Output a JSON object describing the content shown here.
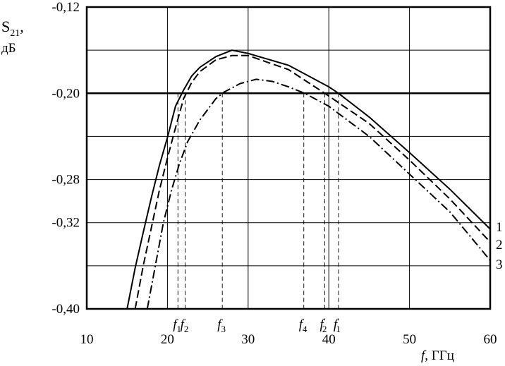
{
  "chart_data": {
    "type": "line",
    "ylabel": {
      "main": "S",
      "sub": "21",
      "rest": ",",
      "unit": "дБ"
    },
    "xlabel": {
      "italic": "f",
      "rest": ", ГГц"
    },
    "xlim": [
      10,
      60
    ],
    "xticks": [
      10,
      20,
      30,
      40,
      50,
      60
    ],
    "ylim": [
      -0.4,
      -0.12
    ],
    "yticks": [
      {
        "value": -0.12,
        "label": "-0,12"
      },
      {
        "value": -0.2,
        "label": "-0,20"
      },
      {
        "value": -0.28,
        "label": "-0,28"
      },
      {
        "value": -0.32,
        "label": "-0,32"
      },
      {
        "value": -0.4,
        "label": "-0,40"
      }
    ],
    "ygrid": [
      -0.16,
      -0.24,
      -0.36
    ],
    "highlight_y": -0.2,
    "grid": true,
    "series": [
      {
        "name": "1",
        "color": "#000000",
        "style": "solid",
        "x": [
          15,
          16,
          17,
          18,
          19,
          20,
          21,
          22,
          23,
          24,
          26,
          28,
          30,
          35,
          40,
          41.2,
          45,
          50,
          55,
          60
        ],
        "values": [
          -0.4,
          -0.362,
          -0.329,
          -0.297,
          -0.267,
          -0.241,
          -0.212,
          -0.197,
          -0.184,
          -0.176,
          -0.166,
          -0.16,
          -0.163,
          -0.174,
          -0.194,
          -0.2,
          -0.222,
          -0.255,
          -0.289,
          -0.326
        ]
      },
      {
        "name": "2",
        "color": "#000000",
        "style": "dashed",
        "x": [
          16,
          17,
          18,
          19,
          20,
          21,
          22,
          23,
          24,
          26,
          28,
          30,
          35,
          39.5,
          45,
          50,
          55,
          60
        ],
        "values": [
          -0.4,
          -0.36,
          -0.325,
          -0.29,
          -0.26,
          -0.232,
          -0.205,
          -0.19,
          -0.18,
          -0.169,
          -0.165,
          -0.165,
          -0.178,
          -0.2,
          -0.228,
          -0.262,
          -0.298,
          -0.338
        ]
      },
      {
        "name": "3",
        "color": "#000000",
        "style": "dashdot",
        "x": [
          17.5,
          18.5,
          19.5,
          20.5,
          21.5,
          22.5,
          24,
          26,
          27,
          29,
          31,
          33,
          35,
          37,
          40,
          45,
          50,
          55,
          60
        ],
        "values": [
          -0.4,
          -0.36,
          -0.32,
          -0.29,
          -0.265,
          -0.245,
          -0.225,
          -0.205,
          -0.199,
          -0.191,
          -0.187,
          -0.189,
          -0.194,
          -0.2,
          -0.212,
          -0.24,
          -0.275,
          -0.31,
          -0.355
        ]
      }
    ],
    "markers": [
      {
        "label": "f",
        "sub": "1",
        "x": 21.3
      },
      {
        "label": "f",
        "sub": "2",
        "x": 22.2
      },
      {
        "label": "f",
        "sub": "3",
        "x": 26.8
      },
      {
        "label": "f",
        "sub": "4",
        "x": 36.9
      },
      {
        "label": "f",
        "sub": "2",
        "prime": "'",
        "x": 39.5
      },
      {
        "label": "f",
        "sub": "1",
        "prime": "'",
        "x": 41.2
      }
    ]
  }
}
